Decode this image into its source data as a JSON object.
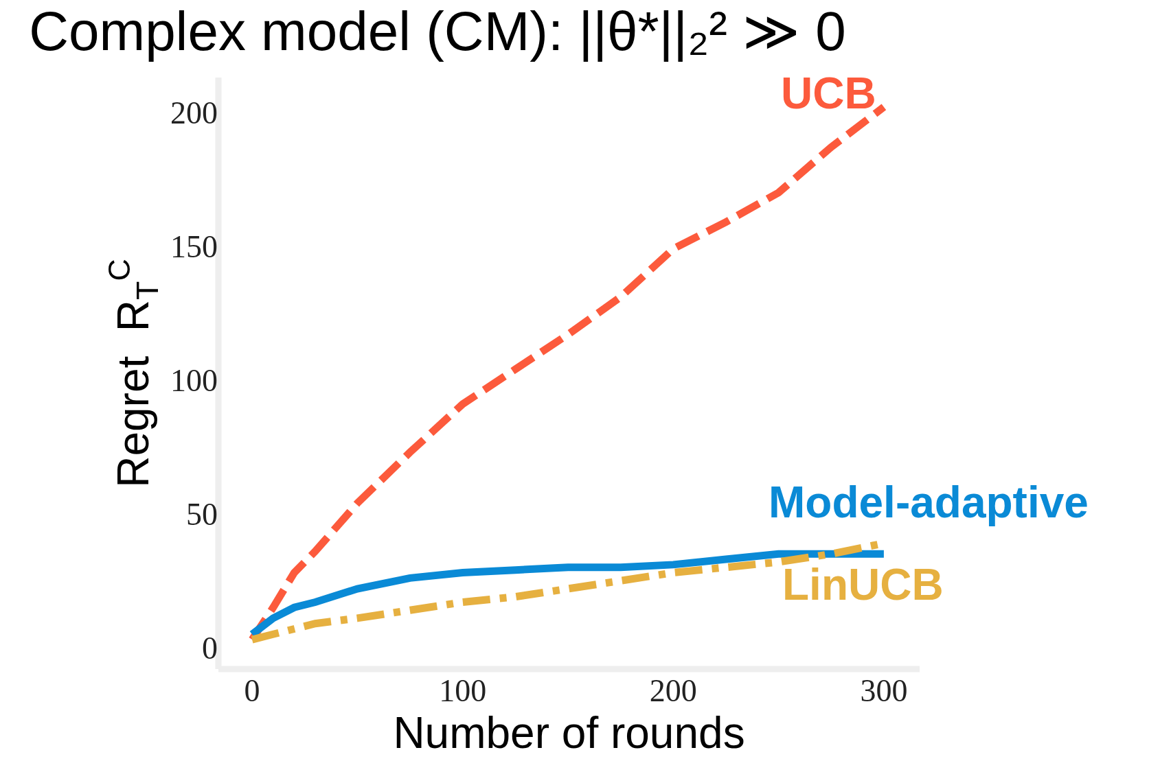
{
  "chart_data": {
    "type": "line",
    "title": "Complex model (CM): ||θ*||₂² ≫ 0",
    "xlabel": "Number of rounds",
    "ylabel": "Regret  R$_{T}$$^{C}$",
    "xlim": [
      -16,
      317
    ],
    "ylim": [
      -8,
      213
    ],
    "xticks": [
      0,
      100,
      200,
      300
    ],
    "yticks": [
      0,
      50,
      100,
      150,
      200
    ],
    "grid": false,
    "legend": false,
    "x": [
      0,
      10,
      20,
      30,
      50,
      75,
      100,
      125,
      150,
      175,
      200,
      225,
      250,
      275,
      300
    ],
    "series": [
      {
        "name": "UCB",
        "color": "#fc5a3c",
        "line_style": "dashed",
        "values": [
          3,
          15,
          28,
          36,
          54,
          73,
          91,
          104,
          117,
          131,
          149,
          159,
          170,
          187,
          202
        ]
      },
      {
        "name": "Model-adaptive",
        "color": "#0a8ad6",
        "line_style": "solid",
        "values": [
          5,
          11,
          15,
          17,
          22,
          26,
          28,
          29,
          30,
          30,
          31,
          33,
          35,
          35,
          35
        ]
      },
      {
        "name": "LinUCB",
        "color": "#e6b040",
        "line_style": "dashdot",
        "values": [
          3,
          5,
          7,
          9,
          11,
          14,
          17,
          19,
          22,
          25,
          28,
          30,
          32,
          35,
          39
        ]
      }
    ]
  }
}
